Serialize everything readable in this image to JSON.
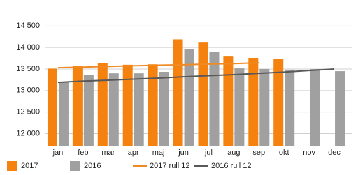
{
  "chart_data": {
    "type": "bar",
    "categories": [
      "jan",
      "feb",
      "mar",
      "apr",
      "maj",
      "jun",
      "jul",
      "aug",
      "sep",
      "okt",
      "nov",
      "dec"
    ],
    "series": [
      {
        "name": "2017",
        "type": "bar",
        "color": "#f5820e",
        "values": [
          13510,
          13565,
          13630,
          13600,
          13610,
          14190,
          14130,
          13790,
          13760,
          13740,
          null,
          null
        ]
      },
      {
        "name": "2016",
        "type": "bar",
        "color": "#a0a0a0",
        "values": [
          13190,
          13355,
          13400,
          13400,
          13435,
          13970,
          13900,
          13515,
          13500,
          13485,
          13500,
          13450
        ]
      },
      {
        "name": "2017 rull 12",
        "type": "line",
        "color": "#f08a24",
        "values": [
          13530,
          13545,
          13560,
          13575,
          13590,
          13600,
          13615,
          13625,
          13645,
          null,
          null,
          null
        ]
      },
      {
        "name": "2016 rull 12",
        "type": "line",
        "color": "#595959",
        "values": [
          13190,
          13220,
          13240,
          13265,
          13290,
          13320,
          13345,
          13370,
          13400,
          13430,
          13465,
          13500
        ]
      }
    ],
    "ylim": [
      11700,
      14700
    ],
    "yticks": [
      {
        "value": 12000,
        "label": "12 000"
      },
      {
        "value": 12500,
        "label": "12 500"
      },
      {
        "value": 13000,
        "label": "13 000"
      },
      {
        "value": 13500,
        "label": "13 500"
      },
      {
        "value": 14000,
        "label": "14 000"
      },
      {
        "value": 14500,
        "label": "14 500"
      }
    ],
    "grid": true,
    "legend": "bottom"
  }
}
